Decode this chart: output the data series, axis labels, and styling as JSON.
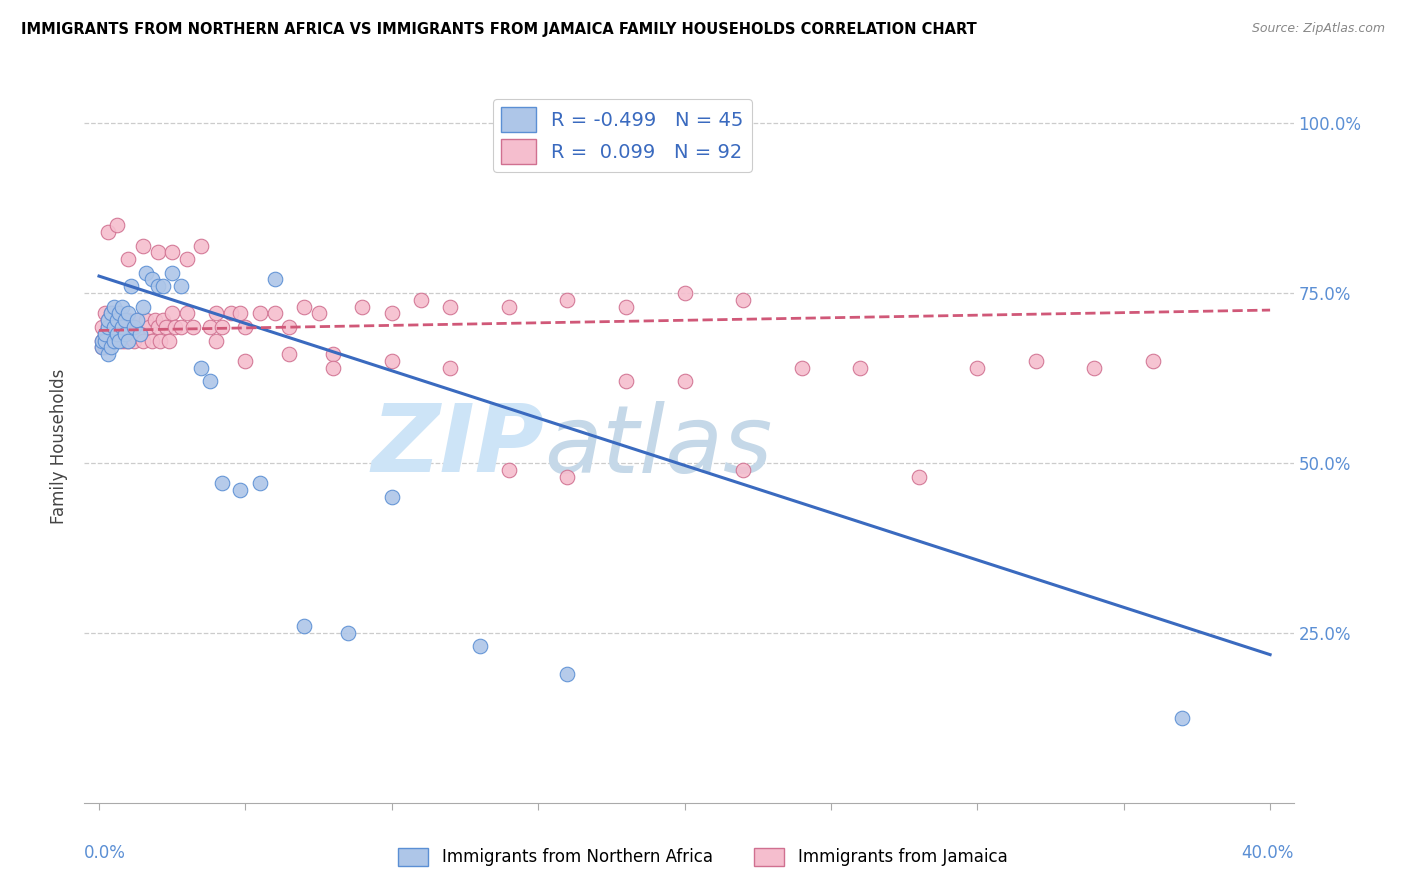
{
  "title": "IMMIGRANTS FROM NORTHERN AFRICA VS IMMIGRANTS FROM JAMAICA FAMILY HOUSEHOLDS CORRELATION CHART",
  "source": "Source: ZipAtlas.com",
  "ylabel": "Family Households",
  "blue_R": -0.499,
  "blue_N": 45,
  "pink_R": 0.099,
  "pink_N": 92,
  "blue_fill": "#aec6e8",
  "blue_edge": "#5b8fd4",
  "pink_fill": "#f5bece",
  "pink_edge": "#d07090",
  "blue_line_color": "#3a6abf",
  "pink_line_color": "#d05878",
  "watermark_zip_color": "#cce0f5",
  "watermark_atlas_color": "#c8d8e8",
  "xlim": [
    0.0,
    0.4
  ],
  "ylim": [
    0.0,
    1.0
  ],
  "blue_scatter_x": [
    0.001,
    0.001,
    0.002,
    0.002,
    0.003,
    0.003,
    0.003,
    0.004,
    0.004,
    0.005,
    0.005,
    0.005,
    0.006,
    0.006,
    0.007,
    0.007,
    0.008,
    0.008,
    0.009,
    0.009,
    0.01,
    0.01,
    0.011,
    0.012,
    0.013,
    0.014,
    0.015,
    0.016,
    0.018,
    0.02,
    0.022,
    0.025,
    0.028,
    0.035,
    0.038,
    0.042,
    0.048,
    0.055,
    0.06,
    0.07,
    0.085,
    0.1,
    0.13,
    0.16,
    0.37
  ],
  "blue_scatter_y": [
    0.67,
    0.68,
    0.68,
    0.69,
    0.66,
    0.7,
    0.71,
    0.67,
    0.72,
    0.68,
    0.7,
    0.73,
    0.69,
    0.71,
    0.68,
    0.72,
    0.7,
    0.73,
    0.69,
    0.71,
    0.68,
    0.72,
    0.76,
    0.7,
    0.71,
    0.69,
    0.73,
    0.78,
    0.77,
    0.76,
    0.76,
    0.78,
    0.76,
    0.64,
    0.62,
    0.47,
    0.46,
    0.47,
    0.77,
    0.26,
    0.25,
    0.45,
    0.23,
    0.19,
    0.125
  ],
  "pink_scatter_x": [
    0.001,
    0.001,
    0.001,
    0.002,
    0.002,
    0.002,
    0.003,
    0.003,
    0.003,
    0.004,
    0.004,
    0.004,
    0.005,
    0.005,
    0.005,
    0.006,
    0.006,
    0.006,
    0.007,
    0.007,
    0.008,
    0.008,
    0.009,
    0.009,
    0.01,
    0.01,
    0.011,
    0.012,
    0.013,
    0.014,
    0.015,
    0.016,
    0.017,
    0.018,
    0.019,
    0.02,
    0.021,
    0.022,
    0.023,
    0.024,
    0.025,
    0.026,
    0.028,
    0.03,
    0.032,
    0.035,
    0.038,
    0.04,
    0.042,
    0.045,
    0.048,
    0.05,
    0.055,
    0.06,
    0.065,
    0.07,
    0.075,
    0.08,
    0.09,
    0.1,
    0.11,
    0.12,
    0.14,
    0.16,
    0.18,
    0.2,
    0.22,
    0.003,
    0.006,
    0.01,
    0.015,
    0.02,
    0.025,
    0.03,
    0.04,
    0.05,
    0.065,
    0.08,
    0.1,
    0.12,
    0.14,
    0.16,
    0.18,
    0.2,
    0.22,
    0.24,
    0.26,
    0.28,
    0.3,
    0.32,
    0.34,
    0.36
  ],
  "pink_scatter_y": [
    0.67,
    0.68,
    0.7,
    0.67,
    0.69,
    0.72,
    0.68,
    0.7,
    0.71,
    0.68,
    0.7,
    0.72,
    0.68,
    0.7,
    0.72,
    0.68,
    0.7,
    0.72,
    0.69,
    0.71,
    0.68,
    0.71,
    0.68,
    0.71,
    0.68,
    0.71,
    0.69,
    0.68,
    0.71,
    0.69,
    0.68,
    0.71,
    0.7,
    0.68,
    0.71,
    0.7,
    0.68,
    0.71,
    0.7,
    0.68,
    0.72,
    0.7,
    0.7,
    0.72,
    0.7,
    0.82,
    0.7,
    0.72,
    0.7,
    0.72,
    0.72,
    0.7,
    0.72,
    0.72,
    0.7,
    0.73,
    0.72,
    0.66,
    0.73,
    0.72,
    0.74,
    0.73,
    0.73,
    0.74,
    0.73,
    0.75,
    0.74,
    0.84,
    0.85,
    0.8,
    0.82,
    0.81,
    0.81,
    0.8,
    0.68,
    0.65,
    0.66,
    0.64,
    0.65,
    0.64,
    0.49,
    0.48,
    0.62,
    0.62,
    0.49,
    0.64,
    0.64,
    0.48,
    0.64,
    0.65,
    0.64,
    0.65
  ],
  "blue_line_x0": 0.0,
  "blue_line_y0": 0.775,
  "blue_line_x1": 0.4,
  "blue_line_y1": 0.218,
  "pink_line_x0": 0.0,
  "pink_line_y0": 0.695,
  "pink_line_x1": 0.4,
  "pink_line_y1": 0.725
}
